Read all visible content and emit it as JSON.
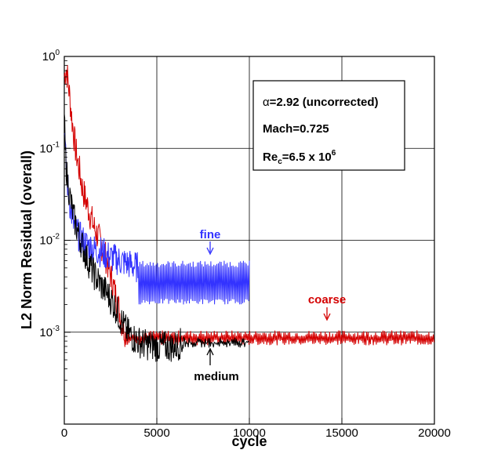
{
  "chart_data": {
    "type": "line",
    "xlabel": "cycle",
    "ylabel": "L2 Norm Residual (overall)",
    "xlim": [
      0,
      20000
    ],
    "ylim": [
      0.0001,
      1
    ],
    "yscale": "log",
    "grid": true,
    "x_ticks": [
      "0",
      "5000",
      "10000",
      "15000",
      "20000"
    ],
    "y_ticks": [
      {
        "base": "10",
        "exp": "0",
        "value": 1
      },
      {
        "base": "10",
        "exp": "-1",
        "value": 0.1
      },
      {
        "base": "10",
        "exp": "-2",
        "value": 0.01
      },
      {
        "base": "10",
        "exp": "-3",
        "value": 0.001
      }
    ],
    "info_box": {
      "line1_symbol": "α",
      "line1_text": "=2.92 (uncorrected)",
      "line2_text": "Mach=0.725",
      "line3_main": "Re",
      "line3_sub": "c",
      "line3_mid": "=6.5 x 10",
      "line3_sup": "6"
    },
    "annotations": {
      "fine": "fine",
      "coarse": "coarse",
      "medium": "medium"
    },
    "series": [
      {
        "name": "coarse",
        "color": "#d40000",
        "x": [
          0,
          100,
          200,
          400,
          600,
          800,
          1000,
          1300,
          1600,
          2000,
          2300,
          2600,
          2900,
          3100,
          3300,
          3500,
          3800,
          4200,
          5000,
          7000,
          10000,
          14000,
          20000
        ],
        "y": [
          0.6,
          0.75,
          0.55,
          0.22,
          0.1,
          0.06,
          0.035,
          0.022,
          0.014,
          0.009,
          0.006,
          0.0035,
          0.002,
          0.0013,
          0.001,
          0.0009,
          0.00085,
          0.00085,
          0.00085,
          0.00085,
          0.00085,
          0.00085,
          0.00085
        ],
        "osc_start": 3300,
        "osc_end": 20000,
        "osc_low": 0.00072,
        "osc_high": 0.00105
      },
      {
        "name": "fine",
        "color": "#3333ff",
        "x": [
          0,
          50,
          150,
          300,
          500,
          800,
          1200,
          1600,
          2000,
          2500,
          3000,
          3500,
          4000,
          10000
        ],
        "y": [
          0.2,
          0.09,
          0.045,
          0.025,
          0.015,
          0.011,
          0.009,
          0.008,
          0.0075,
          0.0065,
          0.006,
          0.0055,
          0.005,
          0.005
        ],
        "osc_start": 4000,
        "osc_end": 10000,
        "osc_low": 0.002,
        "osc_high": 0.006
      },
      {
        "name": "medium",
        "color": "#000000",
        "x": [
          0,
          50,
          150,
          300,
          500,
          800,
          1200,
          1600,
          2000,
          2400,
          2800,
          3100,
          3400,
          3800,
          4200,
          5000,
          6000,
          6500,
          7000,
          10000
        ],
        "y": [
          0.25,
          0.09,
          0.05,
          0.03,
          0.018,
          0.011,
          0.0065,
          0.0043,
          0.0032,
          0.0025,
          0.0018,
          0.0013,
          0.001,
          0.00085,
          0.00075,
          0.0007,
          0.0007,
          0.0008,
          0.00078,
          0.00078
        ],
        "osc_start": 6500,
        "osc_end": 10000,
        "osc_low": 0.00068,
        "osc_high": 0.00088
      }
    ]
  }
}
